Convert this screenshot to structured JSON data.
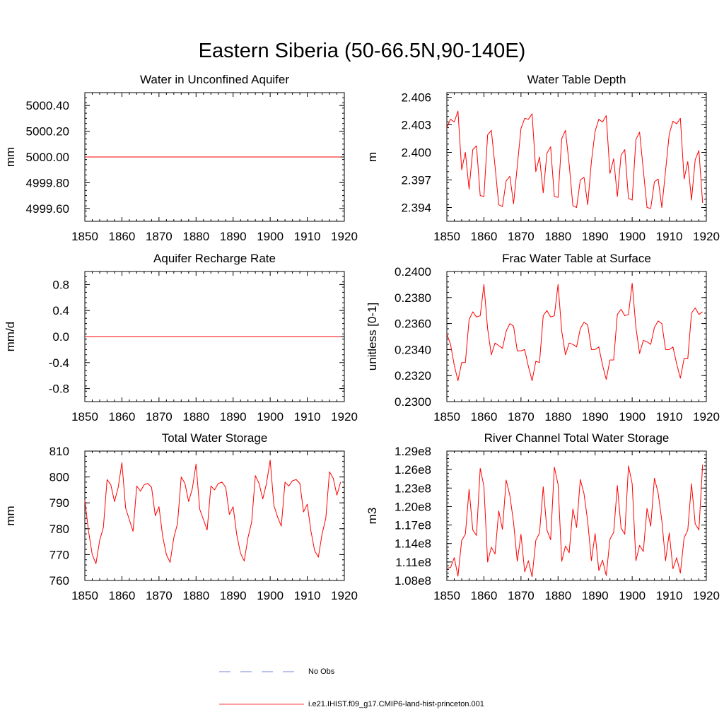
{
  "title": "Eastern Siberia (50-66.5N,90-140E)",
  "chart_data": [
    {
      "type": "line",
      "title": "Water in Unconfined Aquifer",
      "ylabel": "mm",
      "xlim": [
        1850,
        1920
      ],
      "ylim": [
        4999.5,
        5000.5
      ],
      "xticks": [
        1850,
        1860,
        1870,
        1880,
        1890,
        1900,
        1910,
        1920
      ],
      "xtick_labels": [
        "1850",
        "1860",
        "1870",
        "1880",
        "1890",
        "1900",
        "1910",
        "1920"
      ],
      "yticks": [
        4999.6,
        4999.8,
        5000.0,
        5000.2,
        5000.4
      ],
      "ytick_labels": [
        "4999.60",
        "4999.80",
        "5000.00",
        "5000.20",
        "5000.40"
      ],
      "x_start": 1850,
      "x_step": 1,
      "series": [
        {
          "name": "i.e21.IHIST.f09_g17.CMIP6-land-hist-princeton.001",
          "color": "#ff0000",
          "values": [
            5000.0,
            5000.0,
            5000.0,
            5000.0,
            5000.0,
            5000.0,
            5000.0,
            5000.0,
            5000.0,
            5000.0,
            5000.0,
            5000.0,
            5000.0,
            5000.0,
            5000.0,
            5000.0,
            5000.0,
            5000.0,
            5000.0,
            5000.0,
            5000.0,
            5000.0,
            5000.0,
            5000.0,
            5000.0,
            5000.0,
            5000.0,
            5000.0,
            5000.0,
            5000.0,
            5000.0,
            5000.0,
            5000.0,
            5000.0,
            5000.0,
            5000.0,
            5000.0,
            5000.0,
            5000.0,
            5000.0,
            5000.0,
            5000.0,
            5000.0,
            5000.0,
            5000.0,
            5000.0,
            5000.0,
            5000.0,
            5000.0,
            5000.0,
            5000.0,
            5000.0,
            5000.0,
            5000.0,
            5000.0,
            5000.0,
            5000.0,
            5000.0,
            5000.0,
            5000.0,
            5000.0,
            5000.0,
            5000.0,
            5000.0,
            5000.0,
            5000.0,
            5000.0,
            5000.0,
            5000.0,
            5000.0
          ]
        }
      ]
    },
    {
      "type": "line",
      "title": "Water Table Depth",
      "ylabel": "m",
      "xlim": [
        1850,
        1920
      ],
      "ylim": [
        2.3925,
        2.4065
      ],
      "xticks": [
        1850,
        1860,
        1870,
        1880,
        1890,
        1900,
        1910,
        1920
      ],
      "xtick_labels": [
        "1850",
        "1860",
        "1870",
        "1880",
        "1890",
        "1900",
        "1910",
        "1920"
      ],
      "yticks": [
        2.394,
        2.397,
        2.4,
        2.403,
        2.406
      ],
      "ytick_labels": [
        "2.394",
        "2.397",
        "2.400",
        "2.403",
        "2.406"
      ],
      "x_start": 1850,
      "x_step": 1,
      "series": [
        {
          "name": "i.e21.IHIST.f09_g17.CMIP6-land-hist-princeton.001",
          "color": "#ff0000",
          "values": [
            2.4027,
            2.4036,
            2.4033,
            2.4045,
            2.3981,
            2.4,
            2.396,
            2.4003,
            2.4007,
            2.3953,
            2.3952,
            2.4019,
            2.4024,
            2.3985,
            2.3943,
            2.3941,
            2.3969,
            2.3974,
            2.3944,
            2.3985,
            2.4026,
            2.4037,
            2.4036,
            2.4042,
            2.3979,
            2.3995,
            2.3956,
            2.3999,
            2.4006,
            2.3952,
            2.3951,
            2.4015,
            2.4024,
            2.3987,
            2.3942,
            2.394,
            2.397,
            2.3973,
            2.3943,
            2.399,
            2.4023,
            2.4036,
            2.4033,
            2.404,
            2.3977,
            2.3993,
            2.3952,
            2.3997,
            2.4003,
            2.395,
            2.3948,
            2.4014,
            2.4022,
            2.3981,
            2.394,
            2.3939,
            2.3968,
            2.3971,
            2.394,
            2.398,
            2.402,
            2.4034,
            2.4031,
            2.4037,
            2.3971,
            2.399,
            2.3948,
            2.3992,
            2.4002,
            2.3945
          ]
        }
      ]
    },
    {
      "type": "line",
      "title": "Aquifer Recharge Rate",
      "ylabel": "mm/d",
      "xlim": [
        1850,
        1920
      ],
      "ylim": [
        -1.0,
        1.0
      ],
      "xticks": [
        1850,
        1860,
        1870,
        1880,
        1890,
        1900,
        1910,
        1920
      ],
      "xtick_labels": [
        "1850",
        "1860",
        "1870",
        "1880",
        "1890",
        "1900",
        "1910",
        "1920"
      ],
      "yticks": [
        -0.8,
        -0.4,
        0.0,
        0.4,
        0.8
      ],
      "ytick_labels": [
        "-0.8",
        "-0.4",
        "0.0",
        "0.4",
        "0.8"
      ],
      "x_start": 1850,
      "x_step": 1,
      "series": [
        {
          "name": "i.e21.IHIST.f09_g17.CMIP6-land-hist-princeton.001",
          "color": "#ff0000",
          "values": [
            0,
            0,
            0,
            0,
            0,
            0,
            0,
            0,
            0,
            0,
            0,
            0,
            0,
            0,
            0,
            0,
            0,
            0,
            0,
            0,
            0,
            0,
            0,
            0,
            0,
            0,
            0,
            0,
            0,
            0,
            0,
            0,
            0,
            0,
            0,
            0,
            0,
            0,
            0,
            0,
            0,
            0,
            0,
            0,
            0,
            0,
            0,
            0,
            0,
            0,
            0,
            0,
            0,
            0,
            0,
            0,
            0,
            0,
            0,
            0,
            0,
            0,
            0,
            0,
            0,
            0,
            0,
            0,
            0,
            0
          ]
        }
      ]
    },
    {
      "type": "line",
      "title": "Frac Water Table at Surface",
      "ylabel": "unitless [0-1]",
      "xlim": [
        1850,
        1920
      ],
      "ylim": [
        0.23,
        0.24
      ],
      "xticks": [
        1850,
        1860,
        1870,
        1880,
        1890,
        1900,
        1910,
        1920
      ],
      "xtick_labels": [
        "1850",
        "1860",
        "1870",
        "1880",
        "1890",
        "1900",
        "1910",
        "1920"
      ],
      "yticks": [
        0.23,
        0.232,
        0.234,
        0.236,
        0.238,
        0.24
      ],
      "ytick_labels": [
        "0.2300",
        "0.2320",
        "0.2340",
        "0.2360",
        "0.2380",
        "0.2400"
      ],
      "x_start": 1850,
      "x_step": 1,
      "series": [
        {
          "name": "i.e21.IHIST.f09_g17.CMIP6-land-hist-princeton.001",
          "color": "#ff0000",
          "values": [
            0.2352,
            0.2344,
            0.2328,
            0.2316,
            0.233,
            0.233,
            0.2363,
            0.2369,
            0.2365,
            0.2366,
            0.239,
            0.2356,
            0.2336,
            0.2345,
            0.2343,
            0.2341,
            0.2354,
            0.236,
            0.2358,
            0.2339,
            0.2339,
            0.234,
            0.2327,
            0.2316,
            0.2331,
            0.233,
            0.2366,
            0.237,
            0.2365,
            0.2366,
            0.239,
            0.2354,
            0.2336,
            0.2345,
            0.2344,
            0.2342,
            0.2356,
            0.2361,
            0.2359,
            0.234,
            0.234,
            0.2342,
            0.2328,
            0.2317,
            0.2332,
            0.2332,
            0.2367,
            0.2371,
            0.2366,
            0.2367,
            0.2391,
            0.2357,
            0.2337,
            0.2347,
            0.2346,
            0.2344,
            0.2357,
            0.2362,
            0.236,
            0.234,
            0.234,
            0.2342,
            0.2329,
            0.2318,
            0.2333,
            0.2333,
            0.2368,
            0.2372,
            0.2367,
            0.2369
          ]
        }
      ]
    },
    {
      "type": "line",
      "title": "Total Water Storage",
      "ylabel": "mm",
      "xlim": [
        1850,
        1920
      ],
      "ylim": [
        760,
        810
      ],
      "xticks": [
        1850,
        1860,
        1870,
        1880,
        1890,
        1900,
        1910,
        1920
      ],
      "xtick_labels": [
        "1850",
        "1860",
        "1870",
        "1880",
        "1890",
        "1900",
        "1910",
        "1920"
      ],
      "yticks": [
        760,
        770,
        780,
        790,
        800,
        810
      ],
      "ytick_labels": [
        "760",
        "770",
        "780",
        "790",
        "800",
        "810"
      ],
      "x_start": 1850,
      "x_step": 1,
      "series": [
        {
          "name": "i.e21.IHIST.f09_g17.CMIP6-land-hist-princeton.001",
          "color": "#ff0000",
          "values": [
            791.0,
            779.0,
            770.0,
            766.5,
            775.5,
            780.5,
            799.0,
            797.0,
            790.5,
            796.0,
            805.5,
            788.0,
            783.5,
            779.0,
            796.5,
            794.5,
            797.0,
            797.5,
            796.0,
            785.0,
            788.5,
            777.0,
            770.0,
            767.0,
            776.5,
            782.0,
            800.0,
            797.5,
            790.5,
            795.5,
            805.0,
            787.5,
            783.5,
            779.5,
            796.5,
            795.0,
            797.5,
            798.0,
            796.0,
            785.5,
            788.5,
            777.5,
            770.5,
            767.5,
            776.5,
            782.5,
            800.5,
            797.5,
            791.5,
            797.5,
            806.5,
            789.0,
            784.5,
            781.0,
            798.0,
            796.5,
            798.5,
            799.0,
            797.5,
            786.5,
            789.5,
            779.0,
            771.5,
            769.0,
            778.0,
            784.0,
            802.0,
            799.5,
            793.0,
            798.0
          ]
        }
      ]
    },
    {
      "type": "line",
      "title": "River Channel Total Water Storage",
      "ylabel": "m3",
      "xlim": [
        1850,
        1920
      ],
      "ylim": [
        108000000.0,
        129000000.0
      ],
      "xticks": [
        1850,
        1860,
        1870,
        1880,
        1890,
        1900,
        1910,
        1920
      ],
      "xtick_labels": [
        "1850",
        "1860",
        "1870",
        "1880",
        "1890",
        "1900",
        "1910",
        "1920"
      ],
      "yticks": [
        108000000.0,
        111000000.0,
        114000000.0,
        117000000.0,
        120000000.0,
        123000000.0,
        126000000.0,
        129000000.0
      ],
      "ytick_labels": [
        "1.08e8",
        "1.11e8",
        "1.14e8",
        "1.17e8",
        "1.20e8",
        "1.23e8",
        "1.26e8",
        "1.29e8"
      ],
      "x_start": 1850,
      "x_step": 1,
      "series": [
        {
          "name": "i.e21.IHIST.f09_g17.CMIP6-land-hist-princeton.001",
          "color": "#ff0000",
          "values": [
            110000000.0,
            110100000.0,
            111700000.0,
            108700000.0,
            114500000.0,
            115500000.0,
            122800000.0,
            116200000.0,
            115300000.0,
            126200000.0,
            123300000.0,
            111000000.0,
            113400000.0,
            112300000.0,
            119300000.0,
            116300000.0,
            124300000.0,
            121800000.0,
            117400000.0,
            111100000.0,
            115500000.0,
            109400000.0,
            111200000.0,
            108600000.0,
            114500000.0,
            115700000.0,
            123200000.0,
            116200000.0,
            114600000.0,
            126400000.0,
            123600000.0,
            111100000.0,
            113600000.0,
            112500000.0,
            119600000.0,
            116600000.0,
            124400000.0,
            122100000.0,
            117600000.0,
            111200000.0,
            115600000.0,
            109600000.0,
            111300000.0,
            108800000.0,
            114700000.0,
            115800000.0,
            123400000.0,
            116500000.0,
            115500000.0,
            126600000.0,
            123700000.0,
            111200000.0,
            113700000.0,
            112700000.0,
            119700000.0,
            116800000.0,
            124600000.0,
            122200000.0,
            117700000.0,
            111200000.0,
            115700000.0,
            109900000.0,
            111700000.0,
            109200000.0,
            114900000.0,
            116200000.0,
            123700000.0,
            117200000.0,
            116200000.0,
            126800000.0
          ]
        }
      ]
    }
  ],
  "legend": [
    {
      "label": "No Obs",
      "color": "#4a5bd4",
      "style": "dashed"
    },
    {
      "label": "i.e21.IHIST.f09_g17.CMIP6-land-hist-princeton.001",
      "color": "#ff0000",
      "style": "solid"
    }
  ]
}
